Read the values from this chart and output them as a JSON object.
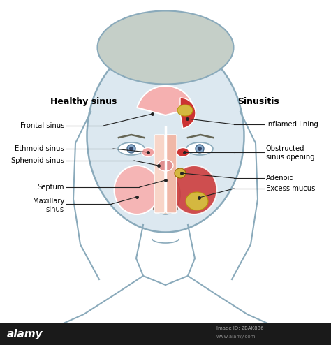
{
  "background_color": "#ffffff",
  "face_color": "#dce8f0",
  "face_outline_color": "#8aaabb",
  "sinus_healthy_color": "#f0a0a0",
  "sinus_inflamed_color": "#cc2222",
  "mucus_color": "#d4b840",
  "nose_color": "#e8c0b0",
  "title_left": "Healthy sinus",
  "title_right": "Sinusitis",
  "labels_left": [
    "Frontal sinus",
    "Ethmoid sinus",
    "Sphenoid sinus",
    "Septum",
    "Maxillary\nsinus"
  ],
  "labels_right": [
    "Inflamed lining",
    "Obstructed\nsinus opening",
    "Adenoid",
    "Excess mucus"
  ],
  "alamy_bar_color": "#1a1a1a",
  "figsize": [
    4.74,
    4.94
  ],
  "dpi": 100
}
